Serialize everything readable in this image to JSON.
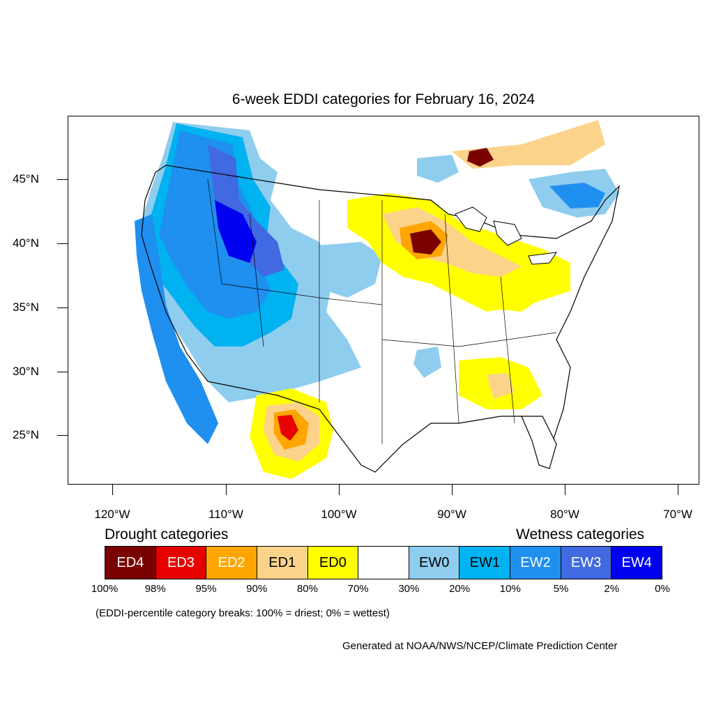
{
  "title": "6-week EDDI categories for February 16, 2024",
  "axes": {
    "latitudes": [
      "45°N",
      "40°N",
      "35°N",
      "30°N",
      "25°N"
    ],
    "longitudes": [
      "120°W",
      "110°W",
      "100°W",
      "90°W",
      "80°W",
      "70°W"
    ]
  },
  "legend": {
    "drought_heading": "Drought categories",
    "wetness_heading": "Wetness categories",
    "categories": [
      {
        "label": "ED4",
        "color": "#7a0000",
        "text_color": "#ffffff"
      },
      {
        "label": "ED3",
        "color": "#e60000",
        "text_color": "#ffffff"
      },
      {
        "label": "ED2",
        "color": "#ffa500",
        "text_color": "#ffffff"
      },
      {
        "label": "ED1",
        "color": "#fcd38a",
        "text_color": "#000000"
      },
      {
        "label": "ED0",
        "color": "#ffff00",
        "text_color": "#000000"
      },
      {
        "label": "",
        "color": "#ffffff",
        "text_color": "#000000"
      },
      {
        "label": "EW0",
        "color": "#8fcdee",
        "text_color": "#000000"
      },
      {
        "label": "EW1",
        "color": "#00b2f0",
        "text_color": "#000000"
      },
      {
        "label": "EW2",
        "color": "#1f8ff0",
        "text_color": "#ffffff"
      },
      {
        "label": "EW3",
        "color": "#4169e1",
        "text_color": "#ffffff"
      },
      {
        "label": "EW4",
        "color": "#0000f0",
        "text_color": "#ffffff"
      }
    ],
    "percentiles": [
      "100%",
      "98%",
      "95%",
      "90%",
      "80%",
      "70%",
      "30%",
      "20%",
      "10%",
      "5%",
      "2%",
      "0%"
    ]
  },
  "note": "(EDDI-percentile category breaks: 100% = driest; 0% = wettest)",
  "credit": "Generated at NOAA/NWS/NCEP/Climate Prediction Center"
}
